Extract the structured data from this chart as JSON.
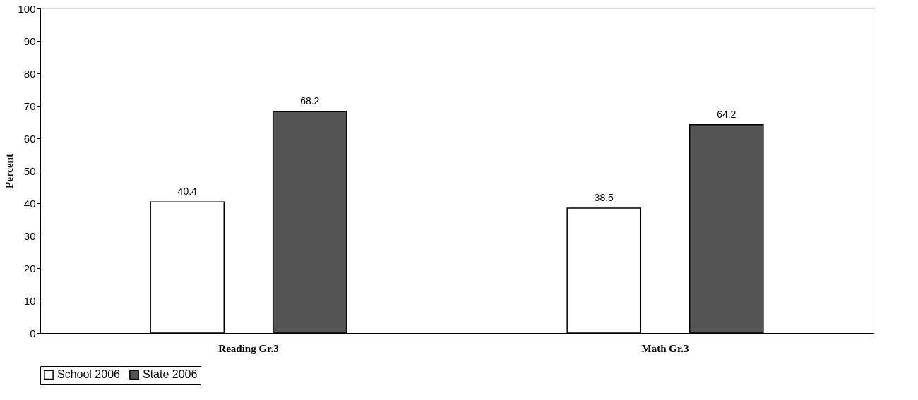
{
  "chart_data": {
    "type": "bar",
    "ylabel": "Percent",
    "categories": [
      "Reading Gr.3",
      "Math Gr.3"
    ],
    "series": [
      {
        "name": "School 2006",
        "color": "#ffffff",
        "values": [
          40.4,
          38.5
        ]
      },
      {
        "name": "State 2006",
        "color": "#555555",
        "values": [
          68.2,
          64.2
        ]
      }
    ],
    "ylim": [
      0,
      100
    ],
    "yticks": [
      0,
      10,
      20,
      30,
      40,
      50,
      60,
      70,
      80,
      90,
      100
    ],
    "grid": false,
    "legend": "bottom",
    "data_labels": true
  }
}
